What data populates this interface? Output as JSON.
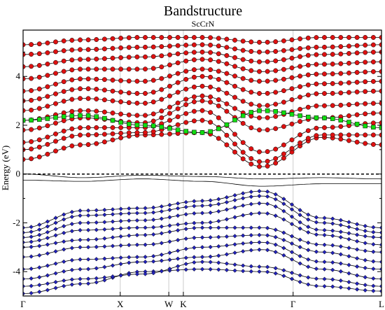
{
  "chart_data": {
    "type": "line",
    "title": "Bandstructure",
    "subtitle": "ScCrN",
    "ylabel": "Energy (eV)",
    "xlabel": "",
    "ylim": [
      -5.0,
      5.9
    ],
    "y_ticks": [
      -4,
      -2,
      0,
      2,
      4
    ],
    "fermi_level": 0,
    "grid": false,
    "legend": "none",
    "k_path": [
      {
        "label": "Γ",
        "k": 0.0
      },
      {
        "label": "X",
        "k": 1.0
      },
      {
        "label": "W",
        "k": 1.5
      },
      {
        "label": "K",
        "k": 1.65
      },
      {
        "label": "Γ",
        "k": 2.78
      },
      {
        "label": "L",
        "k": 3.69
      }
    ],
    "colors": {
      "band_line": "#000000",
      "fermi_line": "#000000",
      "high_symmetry_line": "#cccccc",
      "cr_d_marker": "#dd1111",
      "sc_d_marker": "#11dd11",
      "n_p_marker": "#2222bb"
    },
    "series": [
      {
        "character": "valence",
        "color": "#2222bb",
        "bands": [
          [
            -4.9,
            -4.5,
            -4.0,
            -3.9,
            -4.0,
            -4.6,
            -4.8
          ],
          [
            -4.6,
            -4.3,
            -4.1,
            -3.6,
            -3.8,
            -4.3,
            -4.6
          ],
          [
            -4.3,
            -3.9,
            -3.6,
            -3.4,
            -3.1,
            -3.9,
            -4.3
          ],
          [
            -3.9,
            -3.5,
            -3.4,
            -3.0,
            -2.8,
            -3.6,
            -3.9
          ],
          [
            -3.4,
            -3.0,
            -2.9,
            -2.6,
            -2.5,
            -3.2,
            -3.6
          ],
          [
            -3.0,
            -2.7,
            -2.5,
            -2.2,
            -2.2,
            -2.9,
            -3.2
          ],
          [
            -2.8,
            -2.3,
            -2.2,
            -2.0,
            -1.6,
            -2.5,
            -2.9
          ],
          [
            -2.6,
            -2.0,
            -1.9,
            -1.6,
            -1.2,
            -2.3,
            -2.6
          ],
          [
            -2.4,
            -1.7,
            -1.6,
            -1.3,
            -0.9,
            -2.0,
            -2.4
          ],
          [
            -2.2,
            -1.5,
            -1.4,
            -1.1,
            -0.7,
            -1.8,
            -2.2
          ]
        ]
      },
      {
        "character": "near-fermi",
        "color": "#000000",
        "bands": [
          [
            0.0,
            -0.15,
            -0.05,
            -0.1,
            -0.2,
            -0.15,
            -0.2
          ],
          [
            -0.25,
            -0.3,
            -0.2,
            -0.3,
            -0.5,
            -0.4,
            -0.4
          ]
        ]
      },
      {
        "character": "conduction",
        "color": "#dd1111",
        "bands": [
          [
            0.6,
            1.2,
            1.6,
            1.7,
            0.3,
            1.5,
            1.2
          ],
          [
            1.0,
            1.6,
            1.7,
            2.2,
            0.5,
            1.6,
            1.6
          ],
          [
            1.3,
            1.9,
            1.9,
            2.6,
            0.9,
            1.9,
            2.1
          ],
          [
            1.8,
            2.3,
            2.1,
            3.0,
            1.8,
            2.3,
            2.5
          ],
          [
            2.2,
            2.6,
            2.4,
            3.2,
            2.3,
            2.8,
            2.9
          ],
          [
            2.6,
            3.1,
            2.9,
            3.6,
            2.8,
            3.3,
            3.4
          ],
          [
            3.0,
            3.5,
            3.3,
            4.0,
            3.3,
            3.7,
            3.8
          ],
          [
            3.4,
            3.9,
            3.8,
            4.3,
            3.8,
            4.1,
            4.2
          ],
          [
            3.9,
            4.3,
            4.3,
            4.7,
            4.2,
            4.5,
            4.6
          ],
          [
            4.4,
            4.7,
            4.8,
            5.0,
            4.6,
            4.9,
            5.0
          ],
          [
            4.9,
            5.1,
            5.2,
            5.3,
            5.0,
            5.2,
            5.3
          ],
          [
            5.3,
            5.5,
            5.6,
            5.6,
            5.4,
            5.6,
            5.6
          ]
        ]
      },
      {
        "character": "sc-d",
        "color": "#11dd11",
        "bands": [
          [
            2.2,
            2.4,
            2.0,
            1.7,
            2.6,
            2.3,
            1.9
          ]
        ]
      }
    ]
  }
}
